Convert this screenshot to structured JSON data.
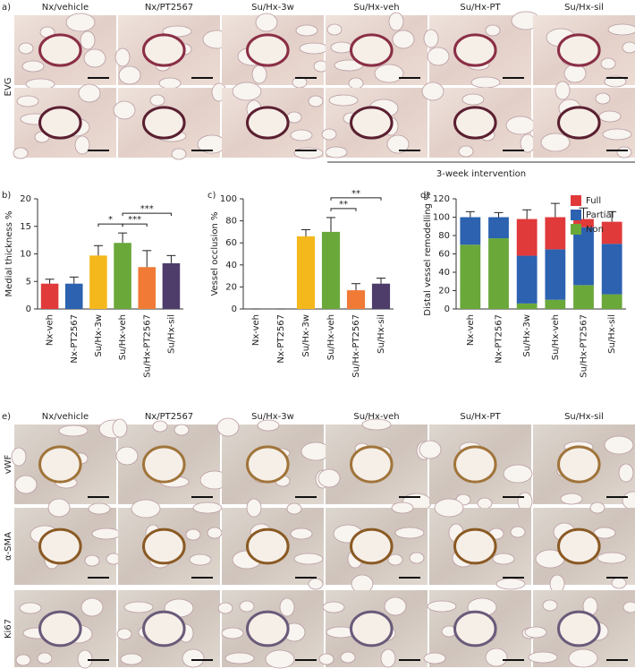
{
  "panel_a": {
    "label": "a)",
    "columns": [
      "Nx/vehicle",
      "Nx/PT2567",
      "Su/Hx-3w",
      "Su/Hx-veh",
      "Su/Hx-PT",
      "Su/Hx-sil"
    ],
    "row_label": "EVG",
    "bracket_label": "3-week intervention"
  },
  "panel_e": {
    "label": "e)",
    "columns": [
      "Nx/vehicle",
      "Nx/PT2567",
      "Su/Hx-3w",
      "Su/Hx-veh",
      "Su/Hx-PT",
      "Su/Hx-sil"
    ],
    "rows": [
      "vWF",
      "α-SMA",
      "Ki67"
    ]
  },
  "chart_data": [
    {
      "type": "bar",
      "label": "b)",
      "y_label": "Medial thickness %",
      "categories": [
        "Nx-veh",
        "Nx-PT2567",
        "Su/Hx-3w",
        "Su/Hx-veh",
        "Su/Hx-PT2567",
        "Su/Hx-sil"
      ],
      "values": [
        4.6,
        4.6,
        9.7,
        12,
        7.6,
        8.3
      ],
      "errors": [
        0.8,
        1.2,
        1.8,
        1.8,
        3,
        1.4
      ],
      "colors": [
        "#e03a3a",
        "#2c62b0",
        "#f5b81c",
        "#6aa83a",
        "#f07a36",
        "#4e3d6a"
      ],
      "ylim": [
        0,
        20
      ],
      "yticks": [
        0,
        5,
        10,
        15,
        20
      ],
      "significance": [
        {
          "text": "*",
          "between": [
            "Su/Hx-3w",
            "Su/Hx-veh"
          ]
        },
        {
          "text": "***",
          "between": [
            "Su/Hx-veh",
            "Su/Hx-PT2567"
          ]
        },
        {
          "text": "***",
          "between": [
            "Su/Hx-veh",
            "Su/Hx-sil"
          ]
        }
      ]
    },
    {
      "type": "bar",
      "label": "c)",
      "y_label": "Vessel occlusion %",
      "categories": [
        "Nx-veh",
        "Nx-PT2567",
        "Su/Hx-3w",
        "Su/Hx-veh",
        "Su/Hx-PT2567",
        "Su/Hx-sil"
      ],
      "values": [
        0,
        0,
        66,
        70,
        17,
        23
      ],
      "errors": [
        0,
        0,
        6,
        13,
        6,
        5
      ],
      "colors": [
        "#e03a3a",
        "#2c62b0",
        "#f5b81c",
        "#6aa83a",
        "#f07a36",
        "#4e3d6a"
      ],
      "ylim": [
        0,
        100
      ],
      "yticks": [
        0,
        20,
        40,
        60,
        80,
        100
      ],
      "significance": [
        {
          "text": "**",
          "between": [
            "Su/Hx-veh",
            "Su/Hx-PT2567"
          ]
        },
        {
          "text": "**",
          "between": [
            "Su/Hx-veh",
            "Su/Hx-sil"
          ]
        }
      ]
    },
    {
      "type": "stacked_bar",
      "label": "d)",
      "y_label": "Distal vessel remodelling %",
      "categories": [
        "Nx-veh",
        "Nx-PT2567",
        "Su/Hx-3w",
        "Su/Hx-veh",
        "Su/Hx-PT2567",
        "Su/Hx-sil"
      ],
      "series": [
        {
          "name": "Non",
          "color": "#6aa83a",
          "values": [
            70,
            77,
            6,
            10,
            26,
            16
          ],
          "errors": [
            15,
            5,
            5,
            10,
            12,
            5
          ]
        },
        {
          "name": "Partial",
          "color": "#2c62b0",
          "values": [
            30,
            23,
            52,
            55,
            63,
            55
          ],
          "errors": [
            0,
            0,
            8,
            5,
            0,
            9
          ]
        },
        {
          "name": "Full",
          "color": "#e03a3a",
          "values": [
            0,
            0,
            40,
            35,
            9,
            24
          ],
          "errors": [
            6,
            5,
            10,
            15,
            12,
            11
          ]
        }
      ],
      "ylim": [
        0,
        120
      ],
      "yticks": [
        0,
        20,
        40,
        60,
        80,
        100,
        120
      ],
      "legend": "top-right"
    }
  ]
}
